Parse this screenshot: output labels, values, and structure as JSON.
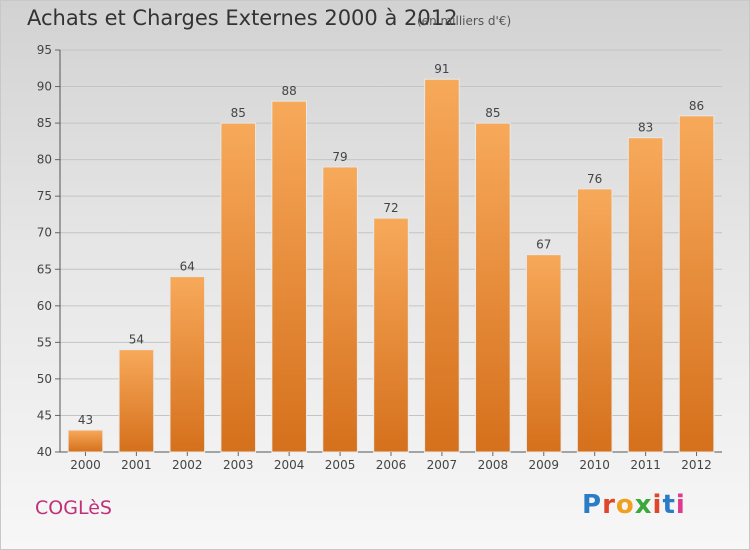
{
  "header": {
    "title": "Achats et Charges Externes 2000 à 2012",
    "subtitle": "(en milliers d'€)"
  },
  "footer": {
    "commune": "COGLèS",
    "logo_text": "Proxiti"
  },
  "colors": {
    "bar_light": "#f7a95a",
    "bar_dark": "#d5701c",
    "commune": "#c0307a",
    "logo_letters": [
      "#2b7cc7",
      "#e0452a",
      "#f0a020",
      "#3aa83a",
      "#e0452a",
      "#2b7cc7",
      "#e03a8a"
    ]
  },
  "chart_data": {
    "type": "bar",
    "title": "Achats et Charges Externes 2000 à 2012",
    "subtitle": "(en milliers d'€)",
    "categories": [
      "2000",
      "2001",
      "2002",
      "2003",
      "2004",
      "2005",
      "2006",
      "2007",
      "2008",
      "2009",
      "2010",
      "2011",
      "2012"
    ],
    "values": [
      43,
      54,
      64,
      85,
      88,
      79,
      72,
      91,
      85,
      67,
      76,
      83,
      86
    ],
    "ylim": [
      40,
      95
    ],
    "yticks": [
      40,
      45,
      50,
      55,
      60,
      65,
      70,
      75,
      80,
      85,
      90,
      95
    ],
    "grid": true,
    "xlabel": "",
    "ylabel": ""
  }
}
